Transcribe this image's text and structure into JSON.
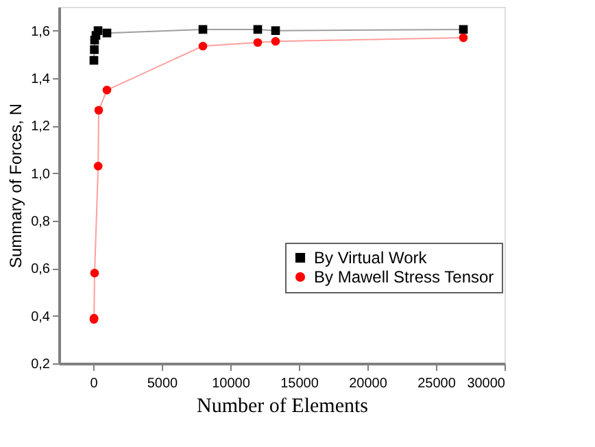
{
  "chart_data": {
    "type": "line",
    "xlabel": "Number of Elements",
    "ylabel": "Summary of Forces, N",
    "xlim": [
      -2500,
      30000
    ],
    "xticks": [
      0,
      5000,
      10000,
      15000,
      20000,
      25000,
      30000
    ],
    "ylim": [
      0.2,
      1.7
    ],
    "yticks": [
      {
        "value": 0.2,
        "label": "0,2"
      },
      {
        "value": 0.4,
        "label": "0,4"
      },
      {
        "value": 0.6,
        "label": "0,6"
      },
      {
        "value": 0.8,
        "label": "0,8"
      },
      {
        "value": 1.0,
        "label": "1,0"
      },
      {
        "value": 1.2,
        "label": "1,2"
      },
      {
        "value": 1.4,
        "label": "1,4"
      },
      {
        "value": 1.6,
        "label": "1,6"
      }
    ],
    "grid": false,
    "legend": "right",
    "line_style": "solid",
    "series": [
      {
        "name": "By Virtual Work",
        "color": "#000000",
        "marker": "square",
        "x": [
          50,
          80,
          100,
          200,
          350,
          1000,
          8000,
          12000,
          13300,
          27000
        ],
        "values": [
          1.475,
          1.52,
          1.56,
          1.58,
          1.6,
          1.59,
          1.605,
          1.605,
          1.6,
          1.605
        ]
      },
      {
        "name": "By Mawell Stress Tensor",
        "color": "#ff0000",
        "marker": "circle",
        "x": [
          50,
          60,
          100,
          360,
          400,
          1000,
          8000,
          12000,
          13300,
          27000
        ],
        "values": [
          0.385,
          0.39,
          0.58,
          1.03,
          1.265,
          1.35,
          1.535,
          1.55,
          1.555,
          1.57
        ]
      }
    ]
  }
}
